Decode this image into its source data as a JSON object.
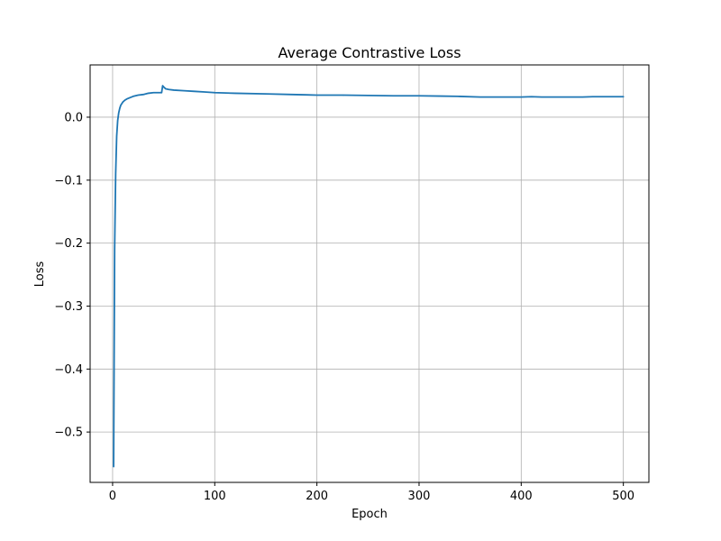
{
  "chart_data": {
    "type": "line",
    "title": "Average Contrastive Loss",
    "xlabel": "Epoch",
    "ylabel": "Loss",
    "xlim": [
      -22,
      525
    ],
    "ylim": [
      -0.58,
      0.083
    ],
    "grid": true,
    "x_ticks": [
      0,
      100,
      200,
      300,
      400,
      500
    ],
    "y_ticks": [
      -0.5,
      -0.4,
      -0.3,
      -0.2,
      -0.1,
      0.0
    ],
    "x_tick_labels": [
      "0",
      "100",
      "200",
      "300",
      "400",
      "500"
    ],
    "y_tick_labels": [
      "−0.5",
      "−0.4",
      "−0.3",
      "−0.2",
      "−0.1",
      "0.0"
    ],
    "series": [
      {
        "color": "#1f77b4",
        "x": [
          1,
          2,
          3,
          4,
          5,
          6,
          7,
          8,
          10,
          12,
          14,
          17,
          20,
          25,
          30,
          35,
          40,
          45,
          48,
          49,
          50,
          52,
          55,
          60,
          70,
          80,
          90,
          100,
          120,
          150,
          175,
          190,
          200,
          225,
          250,
          275,
          300,
          320,
          340,
          360,
          370,
          380,
          400,
          410,
          420,
          440,
          460,
          470,
          480,
          490,
          500
        ],
        "y": [
          -0.555,
          -0.21,
          -0.09,
          -0.03,
          -0.005,
          0.007,
          0.014,
          0.019,
          0.024,
          0.027,
          0.029,
          0.031,
          0.033,
          0.035,
          0.036,
          0.038,
          0.039,
          0.039,
          0.039,
          0.05,
          0.048,
          0.045,
          0.044,
          0.043,
          0.042,
          0.041,
          0.04,
          0.039,
          0.038,
          0.037,
          0.036,
          0.0355,
          0.035,
          0.035,
          0.0345,
          0.034,
          0.034,
          0.0335,
          0.033,
          0.032,
          0.032,
          0.032,
          0.032,
          0.0325,
          0.032,
          0.032,
          0.032,
          0.0325,
          0.0325,
          0.0325,
          0.0325
        ]
      }
    ]
  }
}
